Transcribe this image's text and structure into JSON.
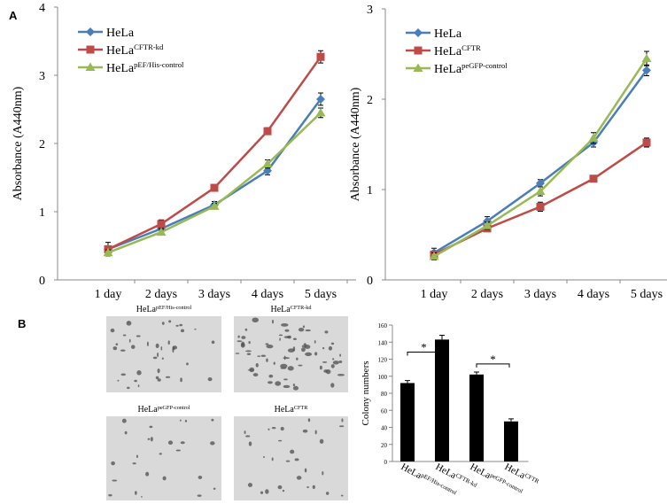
{
  "panel_labels": [
    "A",
    "B"
  ],
  "chart_data": [
    {
      "type": "line",
      "y_label": "Absorbance (A440nm)",
      "categories": [
        "1 day",
        "2 days",
        "3 days",
        "4 days",
        "5 days"
      ],
      "ylim": [
        0,
        4
      ],
      "yticks": [
        0,
        1,
        2,
        3,
        4
      ],
      "series": [
        {
          "name": "HeLa",
          "color": "#4a7ebb",
          "marker": "diamond",
          "values": [
            0.45,
            0.75,
            1.1,
            1.6,
            2.65
          ],
          "errors": [
            0.1,
            0.05,
            0.05,
            0.06,
            0.09
          ]
        },
        {
          "name": "HeLa",
          "superscript": "CFTR-kd",
          "color": "#be4b48",
          "marker": "square",
          "values": [
            0.45,
            0.82,
            1.35,
            2.18,
            3.27
          ],
          "errors": [
            0.05,
            0.06,
            0.03,
            0.05,
            0.09
          ]
        },
        {
          "name": "HeLa",
          "superscript": "pEF/His-control",
          "color": "#98b954",
          "marker": "triangle",
          "values": [
            0.4,
            0.7,
            1.08,
            1.7,
            2.45
          ],
          "errors": [
            0.04,
            0.04,
            0.04,
            0.06,
            0.07
          ]
        }
      ]
    },
    {
      "type": "line",
      "y_label": "Absorbance (A440nm)",
      "categories": [
        "1 day",
        "2 days",
        "3 days",
        "4 days",
        "5 days"
      ],
      "ylim": [
        0,
        3
      ],
      "yticks": [
        0,
        1,
        2,
        3
      ],
      "series": [
        {
          "name": "HeLa",
          "color": "#4a7ebb",
          "marker": "diamond",
          "values": [
            0.3,
            0.65,
            1.07,
            1.52,
            2.32
          ],
          "errors": [
            0.05,
            0.05,
            0.04,
            0.05,
            0.06
          ]
        },
        {
          "name": "HeLa",
          "superscript": "CFTR",
          "color": "#be4b48",
          "marker": "square",
          "values": [
            0.28,
            0.57,
            0.81,
            1.12,
            1.52
          ],
          "errors": [
            0.04,
            0.03,
            0.05,
            0.03,
            0.05
          ]
        },
        {
          "name": "HeLa",
          "superscript": "peGFP-control",
          "color": "#98b954",
          "marker": "triangle",
          "values": [
            0.26,
            0.6,
            0.98,
            1.57,
            2.45
          ],
          "errors": [
            0.04,
            0.04,
            0.05,
            0.06,
            0.08
          ]
        }
      ]
    },
    {
      "type": "bar",
      "y_label": "Colony numbers",
      "color": "#000000",
      "categories": [
        {
          "text": "HeLa",
          "superscript": "pEF/His-control"
        },
        {
          "text": "HeLa",
          "superscript": "CFTR-kd"
        },
        {
          "text": "HeLa",
          "superscript": "peGFP-control"
        },
        {
          "text": "HeLa",
          "superscript": "CFTR"
        }
      ],
      "values": [
        92,
        143,
        102,
        47
      ],
      "errors": [
        3,
        5,
        3,
        3
      ],
      "ylim": [
        0,
        160
      ],
      "yticks": [
        0,
        20,
        40,
        60,
        80,
        100,
        120,
        140,
        160
      ],
      "annotations": [
        "*",
        "*"
      ]
    }
  ],
  "images": [
    {
      "text": "HeLa",
      "superscript": "pEF/His-control"
    },
    {
      "text": "HeLa",
      "superscript": "CFTR-kd"
    },
    {
      "text": "HeLa",
      "superscript": "peGFP-control"
    },
    {
      "text": "HeLa",
      "superscript": "CFTR"
    }
  ]
}
